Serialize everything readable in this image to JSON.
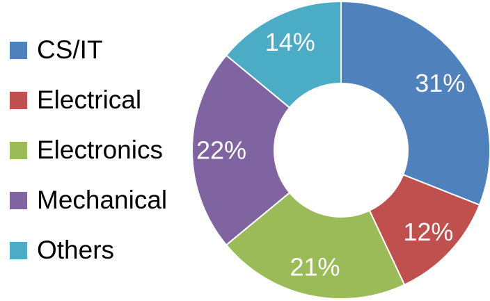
{
  "chart_data": {
    "type": "donut",
    "title": "",
    "legend_position": "left",
    "categories": [
      "CS/IT",
      "Electrical",
      "Electronics",
      "Mechanical",
      "Others"
    ],
    "values": [
      31,
      12,
      21,
      22,
      14
    ],
    "value_labels": [
      "31%",
      "12%",
      "21%",
      "22%",
      "14%"
    ],
    "unit": "%",
    "colors": [
      "#4F81BD",
      "#C0504D",
      "#9BBB59",
      "#8064A2",
      "#4BACC6"
    ]
  }
}
